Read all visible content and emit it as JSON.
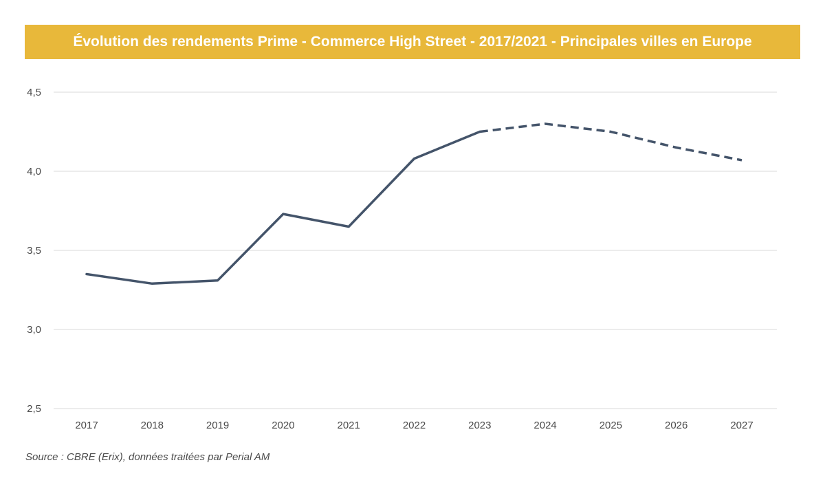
{
  "header": {
    "title": "Évolution des rendements Prime - Commerce High Street - 2017/2021 - Principales villes en Europe",
    "background": "#e8b83a"
  },
  "footer": {
    "source": "Source : CBRE (Erix), données traitées par Perial AM"
  },
  "chart_data": {
    "type": "line",
    "title": "Évolution des rendements Prime - Commerce High Street - 2017/2021 - Principales villes en Europe",
    "xlabel": "",
    "ylabel": "",
    "categories": [
      "2017",
      "2018",
      "2019",
      "2020",
      "2021",
      "2022",
      "2023",
      "2024",
      "2025",
      "2026",
      "2027"
    ],
    "series": [
      {
        "values": [
          3.35,
          3.29,
          3.31,
          3.73,
          3.65,
          4.08,
          4.25,
          4.3,
          4.25,
          4.15,
          4.07
        ],
        "color": "#44546a",
        "solid_until": "2023",
        "dashed_from": "2023"
      }
    ],
    "ylim": [
      2.5,
      4.5
    ],
    "yticks": [
      2.5,
      3.0,
      3.5,
      4.0,
      4.5
    ],
    "ytick_labels": [
      "2,5",
      "3,0",
      "3,5",
      "4,0",
      "4,5"
    ],
    "grid": true,
    "grid_color": "#d9d9d9",
    "legend": "none"
  }
}
